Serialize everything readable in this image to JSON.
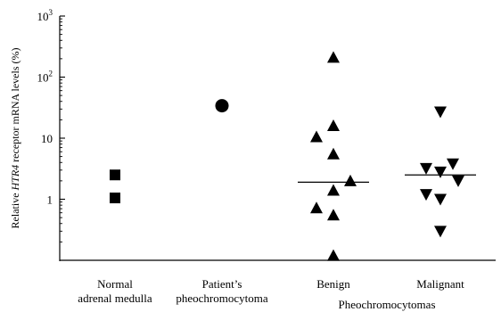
{
  "chart_data": {
    "type": "scatter",
    "title": "",
    "ylabel_pre": "Relative ",
    "ylabel_italic": "HTR4",
    "ylabel_post": " receptor mRNA levels (%)",
    "y_scale": "log",
    "ylim": [
      0.1,
      1000
    ],
    "y_ticks": [
      {
        "value": 1,
        "base": "1",
        "exp": ""
      },
      {
        "value": 10,
        "base": "10",
        "exp": ""
      },
      {
        "value": 100,
        "base": "10",
        "exp": "2"
      },
      {
        "value": 1000,
        "base": "10",
        "exp": "3"
      }
    ],
    "categories": [
      {
        "id": "normal",
        "lines": [
          "Normal",
          "adrenal medulla"
        ]
      },
      {
        "id": "patient",
        "lines": [
          "Patient’s",
          "pheochromocytoma"
        ]
      },
      {
        "id": "benign",
        "lines": [
          "Benign"
        ]
      },
      {
        "id": "malignant",
        "lines": [
          "Malignant"
        ]
      }
    ],
    "group_label": "Pheochromocytomas",
    "series": [
      {
        "category": "normal",
        "marker": "square",
        "values": [
          2.5,
          1.05
        ]
      },
      {
        "category": "patient",
        "marker": "circle",
        "values": [
          34
        ]
      },
      {
        "category": "benign",
        "marker": "triangle-up",
        "values": [
          210,
          16,
          10.5,
          5.5,
          2.0,
          1.4,
          0.72,
          0.55,
          0.12
        ],
        "median": 1.9
      },
      {
        "category": "malignant",
        "marker": "triangle-down",
        "values": [
          27,
          3.8,
          3.2,
          2.8,
          2.0,
          1.2,
          1.0,
          0.3
        ],
        "median": 2.5
      }
    ]
  }
}
